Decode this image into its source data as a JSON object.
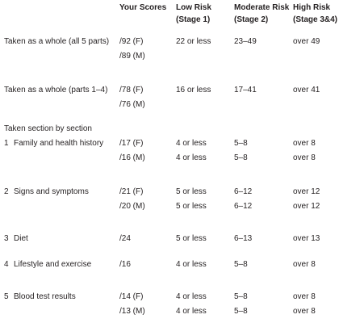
{
  "header": {
    "columns": [
      {
        "lines": [
          "Your Scores"
        ]
      },
      {
        "lines": [
          "Low Risk",
          "(Stage 1)"
        ]
      },
      {
        "lines": [
          "Moderate Risk",
          "(Stage 2)"
        ]
      },
      {
        "lines": [
          "High Risk",
          "(Stage 3&4)"
        ]
      }
    ]
  },
  "rows": [
    {
      "label": "Taken as a whole (all 5 parts)",
      "lines": [
        [
          "/92 (F)",
          "22 or less",
          "23–49",
          "over 49"
        ],
        [
          "/89 (M)"
        ]
      ]
    },
    {
      "label": "Taken as a whole (parts 1–4)",
      "lines": [
        [
          "/78 (F)",
          "16 or less",
          "17–41",
          "over 41"
        ],
        [
          "/76 (M)"
        ]
      ]
    }
  ],
  "section_heading": "Taken section by section",
  "sections": [
    {
      "number": "1",
      "label": "Family and health history",
      "lines": [
        [
          "/17 (F)",
          "4 or less",
          "5–8",
          "over 8"
        ],
        [
          "/16 (M)",
          "4 or less",
          "5–8",
          "over 8"
        ]
      ]
    },
    {
      "number": "2",
      "label": "Signs and symptoms",
      "lines": [
        [
          "/21 (F)",
          "5 or less",
          "6–12",
          "over 12"
        ],
        [
          "/20 (M)",
          "5 or less",
          "6–12",
          "over 12"
        ]
      ]
    },
    {
      "number": "3",
      "label": "Diet",
      "lines": [
        [
          "/24",
          "5 or less",
          "6–13",
          "over 13"
        ]
      ]
    },
    {
      "number": "4",
      "label": "Lifestyle and exercise",
      "lines": [
        [
          "/16",
          "4 or less",
          "5–8",
          "over 8"
        ]
      ]
    },
    {
      "number": "5",
      "label": "Blood test results",
      "lines": [
        [
          "/14 (F)",
          "4 or less",
          "5–8",
          "over 8"
        ],
        [
          "/13 (M)",
          "4 or less",
          "5–8",
          "over 8"
        ]
      ]
    }
  ]
}
